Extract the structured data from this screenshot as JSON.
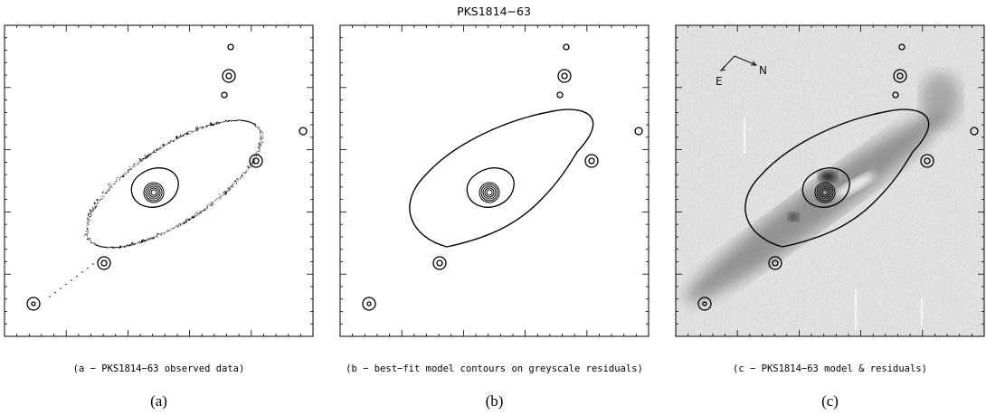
{
  "title": "PKS1814−63",
  "panels": [
    {
      "caption": "(a − PKS1814−63 observed data)",
      "label": "(a)"
    },
    {
      "caption": "(b − best−fit model contours on greyscale residuals)",
      "label": "(b)"
    },
    {
      "caption": "(c − PKS1814−63 model & residuals)",
      "label": "(c)"
    }
  ],
  "compass": {
    "east": "E",
    "north": "N"
  }
}
